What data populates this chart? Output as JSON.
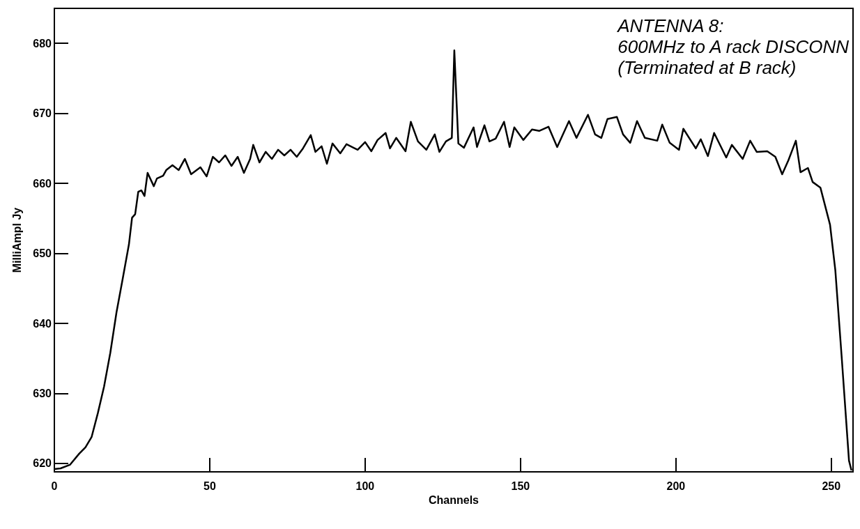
{
  "chart_data": {
    "type": "line",
    "xlabel": "Channels",
    "ylabel": "MilliAmpl Jy",
    "annotations": [
      "ANTENNA 8:\n600MHz to A rack DISCONN\n(Terminated at B rack)"
    ],
    "xlim": [
      0,
      257
    ],
    "ylim": [
      618.8,
      685
    ],
    "xticks": [
      0,
      50,
      100,
      150,
      200,
      250
    ],
    "yticks": [
      620,
      630,
      640,
      650,
      660,
      670,
      680
    ],
    "grid": false,
    "marker": "none",
    "line_style": "solid",
    "series": [
      {
        "color": "#000000",
        "x": [
          0,
          2,
          5,
          8,
          10,
          12,
          14,
          16,
          18,
          20,
          22,
          24,
          25,
          26,
          27,
          28,
          29,
          30,
          32,
          33,
          35,
          36,
          38,
          40,
          42,
          44,
          47,
          49,
          51,
          53,
          55,
          57,
          59,
          61,
          63,
          64,
          66,
          68,
          70,
          72,
          74,
          76,
          78,
          80,
          82.5,
          84,
          86,
          87.7,
          89.5,
          92,
          94,
          97.6,
          100,
          102,
          104,
          106.6,
          108,
          110,
          113,
          114.7,
          117,
          119.7,
          122.4,
          123.9,
          126,
          127.9,
          128.7,
          130,
          131.8,
          134.9,
          136,
          138.4,
          140,
          142,
          144.7,
          146.5,
          148,
          150.9,
          153.7,
          156,
          159,
          161.8,
          165.6,
          168,
          171.7,
          174,
          176,
          178,
          181,
          183,
          185.3,
          187.5,
          190,
          194,
          195.6,
          198,
          201,
          202.4,
          206.4,
          208,
          210.3,
          212.3,
          216.2,
          218,
          221.5,
          223.9,
          226,
          229.4,
          232,
          234.2,
          236.2,
          238.6,
          240.1,
          242.5,
          244,
          246.5,
          249.6,
          251.3,
          253.3,
          255.7,
          256.5
        ],
        "values": [
          619.2,
          619.3,
          619.8,
          621.4,
          622.3,
          623.8,
          627.2,
          631,
          635.8,
          641.6,
          646.4,
          651.3,
          655.1,
          655.6,
          658.8,
          659,
          658.2,
          661.5,
          659.6,
          660.7,
          661.1,
          661.9,
          662.6,
          661.9,
          663.5,
          661.3,
          662.3,
          661,
          663.8,
          663,
          664,
          662.5,
          663.8,
          661.5,
          663.5,
          665.5,
          663,
          664.5,
          663.5,
          664.8,
          664,
          664.8,
          663.8,
          665,
          666.9,
          664.5,
          665.3,
          662.8,
          665.7,
          664.3,
          665.6,
          664.8,
          665.9,
          664.6,
          666.2,
          667.2,
          665,
          666.5,
          664.6,
          668.8,
          666,
          664.8,
          667,
          664.5,
          666,
          666.5,
          679,
          665.7,
          665.1,
          668,
          665.2,
          668.3,
          666,
          666.4,
          668.8,
          665.2,
          668,
          666.2,
          667.7,
          667.5,
          668.1,
          665.2,
          668.9,
          666.5,
          669.8,
          667,
          666.5,
          669.2,
          669.5,
          667,
          665.8,
          668.9,
          666.5,
          666.1,
          668.4,
          665.8,
          664.8,
          667.8,
          665,
          666.3,
          663.9,
          667.2,
          663.7,
          665.5,
          663.5,
          666.1,
          664.5,
          664.6,
          663.8,
          661.3,
          663.3,
          666.1,
          661.6,
          662.2,
          660.2,
          659.4,
          654.1,
          647.6,
          635.5,
          620.4,
          619
        ]
      }
    ]
  }
}
